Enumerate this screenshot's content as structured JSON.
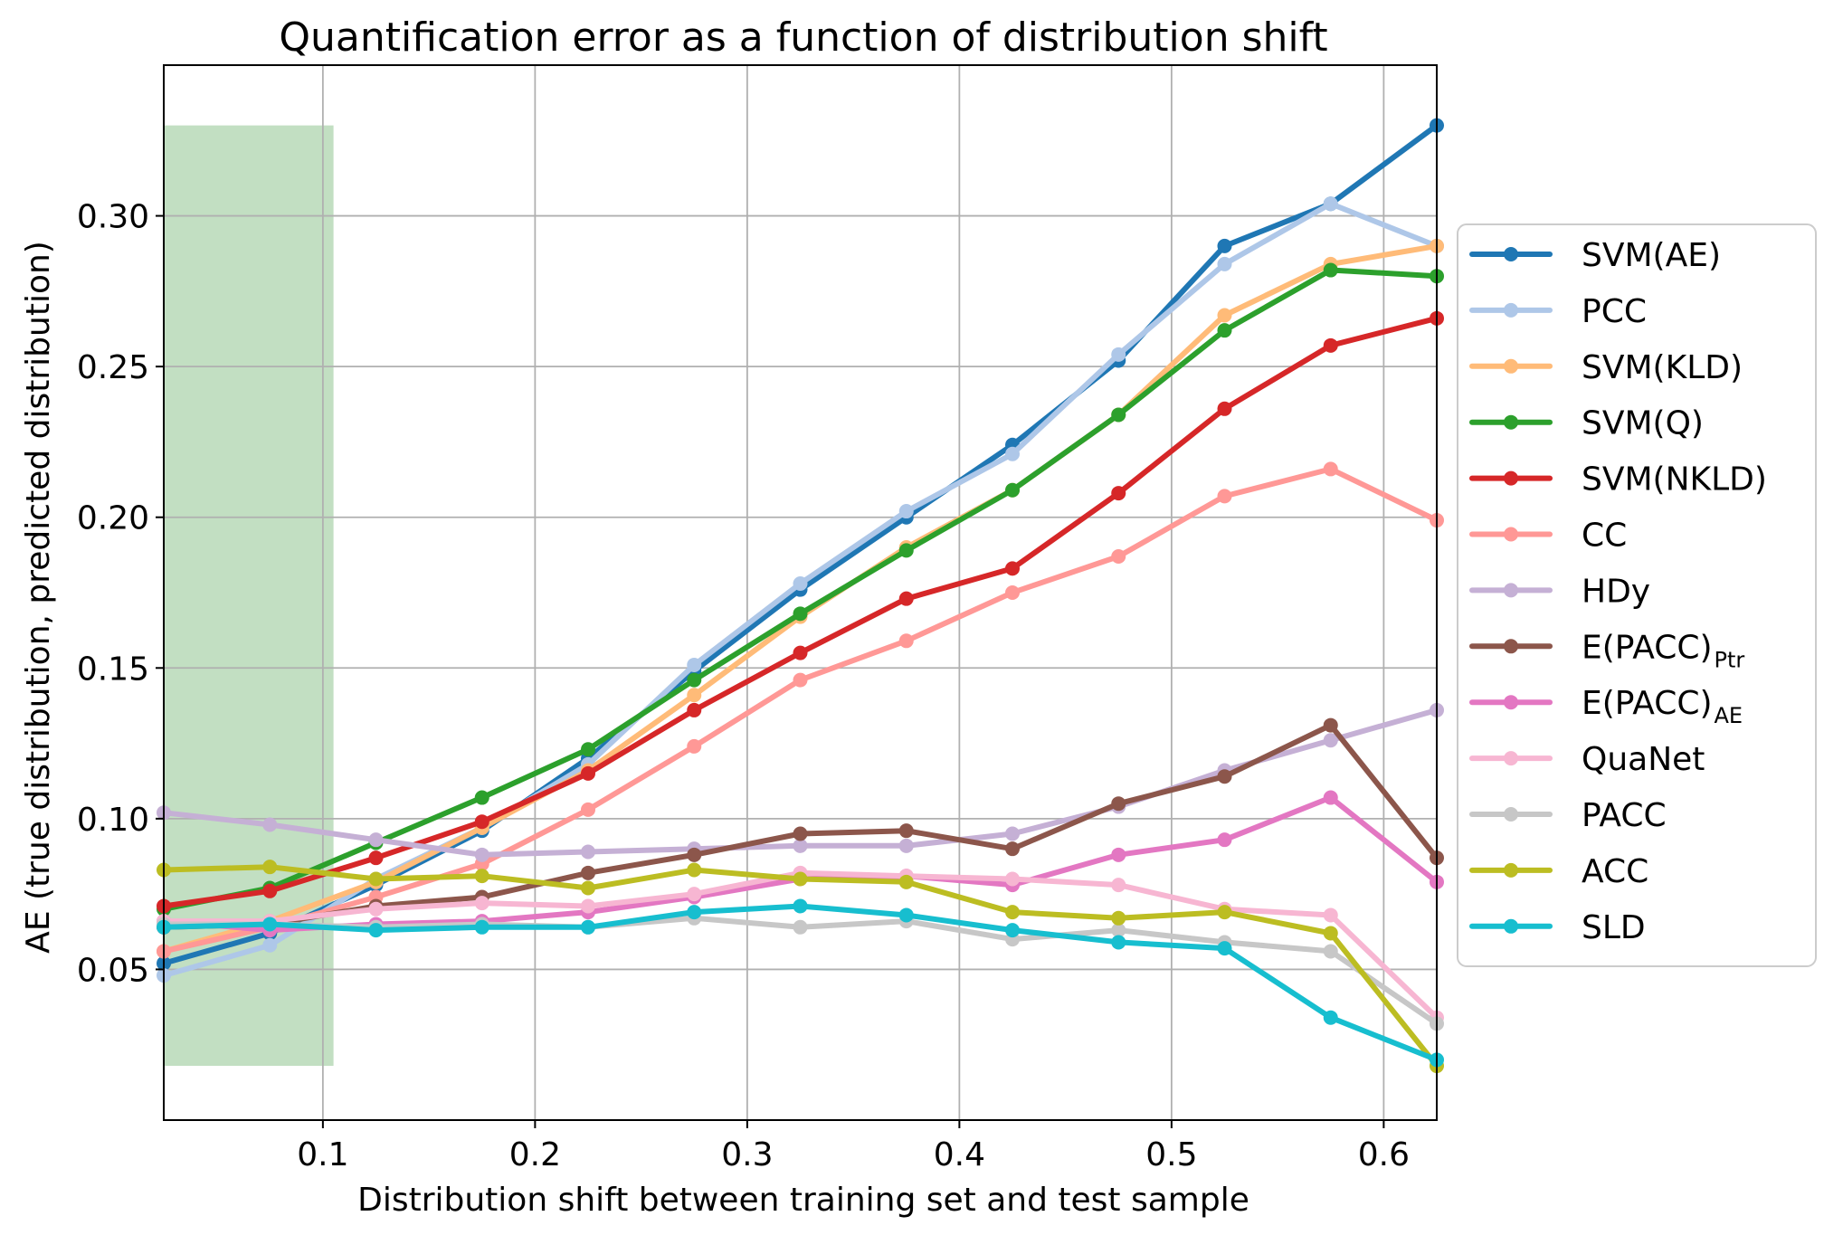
{
  "chart_data": {
    "type": "line",
    "title": "Quantification error as a function of distribution shift",
    "xlabel": "Distribution shift between training set and test sample",
    "ylabel": "AE (true distribution, predicted distribution)",
    "xlim": [
      0.025,
      0.625
    ],
    "ylim": [
      0.0,
      0.35
    ],
    "xticks": [
      0.1,
      0.2,
      0.3,
      0.4,
      0.5,
      0.6
    ],
    "yticks": [
      0.05,
      0.1,
      0.15,
      0.2,
      0.25,
      0.3
    ],
    "grid": true,
    "legend_position": "right",
    "shaded_region": {
      "x": [
        0.025,
        0.105
      ],
      "y": [
        0.018,
        0.33
      ],
      "color": "#c2dfc2"
    },
    "x": [
      0.025,
      0.075,
      0.125,
      0.175,
      0.225,
      0.275,
      0.325,
      0.375,
      0.425,
      0.475,
      0.525,
      0.575,
      0.625
    ],
    "series": [
      {
        "name": "SVM(AE)",
        "color": "#1f77b4",
        "values": [
          0.052,
          0.062,
          0.078,
          0.096,
          0.12,
          0.149,
          0.176,
          0.2,
          0.224,
          0.252,
          0.29,
          0.304,
          0.33
        ]
      },
      {
        "name": "PCC",
        "color": "#aec7e8",
        "values": [
          0.048,
          0.058,
          0.08,
          0.097,
          0.118,
          0.151,
          0.178,
          0.202,
          0.221,
          0.254,
          0.284,
          0.304,
          0.29
        ]
      },
      {
        "name": "SVM(KLD)",
        "color": "#ffbb78",
        "values": [
          0.056,
          0.066,
          0.079,
          0.097,
          0.116,
          0.141,
          0.167,
          0.19,
          0.209,
          0.234,
          0.267,
          0.284,
          0.29
        ]
      },
      {
        "name": "SVM(Q)",
        "color": "#2ca02c",
        "values": [
          0.07,
          0.077,
          0.092,
          0.107,
          0.123,
          0.146,
          0.168,
          0.189,
          0.209,
          0.234,
          0.262,
          0.282,
          0.28
        ]
      },
      {
        "name": "SVM(NKLD)",
        "color": "#d62728",
        "values": [
          0.071,
          0.076,
          0.087,
          0.099,
          0.115,
          0.136,
          0.155,
          0.173,
          0.183,
          0.208,
          0.236,
          0.257,
          0.266
        ]
      },
      {
        "name": "CC",
        "color": "#ff9896",
        "values": [
          0.056,
          0.064,
          0.074,
          0.085,
          0.103,
          0.124,
          0.146,
          0.159,
          0.175,
          0.187,
          0.207,
          0.216,
          0.199
        ]
      },
      {
        "name": "HDy",
        "color": "#c5b0d5",
        "values": [
          0.102,
          0.098,
          0.093,
          0.088,
          0.089,
          0.09,
          0.091,
          0.091,
          0.095,
          0.104,
          0.116,
          0.126,
          0.136
        ]
      },
      {
        "name": "E(PACC)",
        "sub": "Ptr",
        "color": "#8c564b",
        "values": [
          0.064,
          0.065,
          0.071,
          0.074,
          0.082,
          0.088,
          0.095,
          0.096,
          0.09,
          0.105,
          0.114,
          0.131,
          0.087
        ]
      },
      {
        "name": "E(PACC)",
        "sub": "AE",
        "color": "#e377c2",
        "values": [
          0.066,
          0.063,
          0.065,
          0.066,
          0.069,
          0.074,
          0.08,
          0.081,
          0.078,
          0.088,
          0.093,
          0.107,
          0.079
        ]
      },
      {
        "name": "QuaNet",
        "color": "#f7b6d2",
        "values": [
          0.066,
          0.066,
          0.07,
          0.072,
          0.071,
          0.075,
          0.082,
          0.081,
          0.08,
          0.078,
          0.07,
          0.068,
          0.034
        ]
      },
      {
        "name": "PACC",
        "color": "#c7c7c7",
        "values": [
          0.065,
          0.065,
          0.064,
          0.065,
          0.064,
          0.067,
          0.064,
          0.066,
          0.06,
          0.063,
          0.059,
          0.056,
          0.032
        ]
      },
      {
        "name": "ACC",
        "color": "#bcbd22",
        "values": [
          0.083,
          0.084,
          0.08,
          0.081,
          0.077,
          0.083,
          0.08,
          0.079,
          0.069,
          0.067,
          0.069,
          0.062,
          0.018
        ]
      },
      {
        "name": "SLD",
        "color": "#17becf",
        "values": [
          0.064,
          0.065,
          0.063,
          0.064,
          0.064,
          0.069,
          0.071,
          0.068,
          0.063,
          0.059,
          0.057,
          0.034,
          0.02
        ]
      }
    ]
  }
}
